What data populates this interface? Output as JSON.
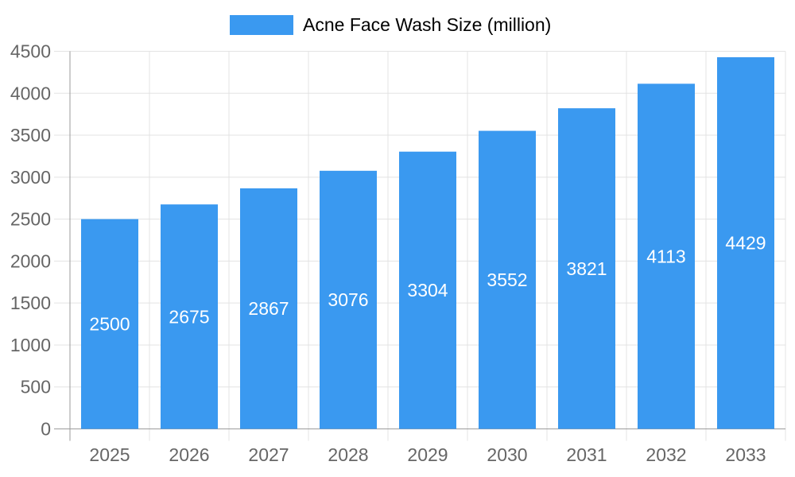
{
  "legend": {
    "label": "Acne Face Wash Size (million)"
  },
  "chart_data": {
    "type": "bar",
    "title": "Acne Face Wash Size (million)",
    "series_name": "Acne Face Wash Size (million)",
    "categories": [
      "2025",
      "2026",
      "2027",
      "2028",
      "2029",
      "2030",
      "2031",
      "2032",
      "2033"
    ],
    "values": [
      2500,
      2675,
      2867,
      3076,
      3304,
      3552,
      3821,
      4113,
      4429
    ],
    "xlabel": "",
    "ylabel": "",
    "ylim": [
      0,
      4500
    ],
    "yticks": [
      0,
      500,
      1000,
      1500,
      2000,
      2500,
      3000,
      3500,
      4000,
      4500
    ],
    "grid": true,
    "legend_position": "top-center",
    "value_labels": "inside-center",
    "colors": {
      "bar": "#3a99f0",
      "value_label": "#ffffff",
      "axis_text": "#666666",
      "gridline": "#e3e3e3",
      "axis_line": "#9b9b9b",
      "background": "#ffffff"
    }
  }
}
